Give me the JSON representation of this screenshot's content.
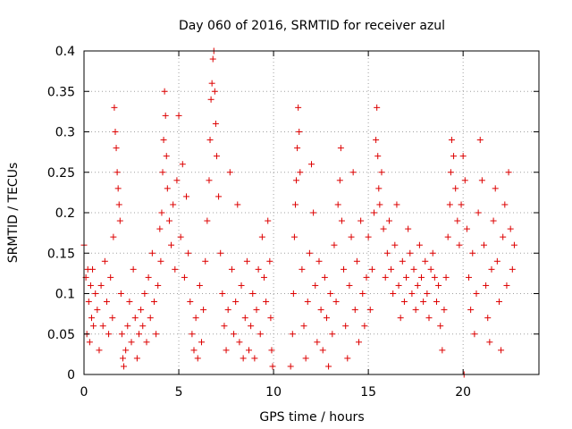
{
  "chart_data": {
    "type": "scatter",
    "title": "Day 060 of 2016, SRMTID for receiver azul",
    "xlabel": "GPS time / hours",
    "ylabel": "SRMTID / TECUs",
    "xlim": [
      0,
      24
    ],
    "ylim": [
      0,
      0.4
    ],
    "grid": true,
    "marker": "plus",
    "colors": {
      "series": "#dd0000",
      "grid": "#a0a0a0",
      "axis": "#000000"
    },
    "x_ticks": [
      {
        "value": 0,
        "label": "0"
      },
      {
        "value": 5,
        "label": "5"
      },
      {
        "value": 10,
        "label": "10"
      },
      {
        "value": 15,
        "label": "15"
      },
      {
        "value": 20,
        "label": "20"
      }
    ],
    "y_ticks": [
      {
        "value": 0,
        "label": "0"
      },
      {
        "value": 0.05,
        "label": "0.05"
      },
      {
        "value": 0.1,
        "label": "0.1"
      },
      {
        "value": 0.15,
        "label": "0.15"
      },
      {
        "value": 0.2,
        "label": "0.2"
      },
      {
        "value": 0.25,
        "label": "0.25"
      },
      {
        "value": 0.3,
        "label": "0.3"
      },
      {
        "value": 0.35,
        "label": "0.35"
      },
      {
        "value": 0.4,
        "label": "0.4"
      }
    ],
    "series": [
      {
        "name": "SRMTID",
        "points": [
          [
            0.0,
            0.16
          ],
          [
            0.1,
            0.12
          ],
          [
            0.15,
            0.05
          ],
          [
            0.2,
            0.13
          ],
          [
            0.25,
            0.09
          ],
          [
            0.3,
            0.04
          ],
          [
            0.35,
            0.11
          ],
          [
            0.4,
            0.07
          ],
          [
            0.45,
            0.13
          ],
          [
            0.5,
            0.06
          ],
          [
            0.6,
            0.1
          ],
          [
            0.7,
            0.08
          ],
          [
            0.8,
            0.03
          ],
          [
            0.9,
            0.11
          ],
          [
            1.0,
            0.06
          ],
          [
            1.1,
            0.14
          ],
          [
            1.2,
            0.09
          ],
          [
            1.3,
            0.05
          ],
          [
            1.4,
            0.12
          ],
          [
            1.5,
            0.07
          ],
          [
            1.55,
            0.17
          ],
          [
            1.6,
            0.33
          ],
          [
            1.65,
            0.3
          ],
          [
            1.7,
            0.28
          ],
          [
            1.75,
            0.25
          ],
          [
            1.8,
            0.23
          ],
          [
            1.85,
            0.21
          ],
          [
            1.9,
            0.19
          ],
          [
            1.95,
            0.1
          ],
          [
            2.0,
            0.05
          ],
          [
            2.05,
            0.02
          ],
          [
            2.1,
            0.01
          ],
          [
            2.2,
            0.03
          ],
          [
            2.3,
            0.06
          ],
          [
            2.4,
            0.09
          ],
          [
            2.5,
            0.04
          ],
          [
            2.6,
            0.13
          ],
          [
            2.7,
            0.07
          ],
          [
            2.8,
            0.02
          ],
          [
            2.9,
            0.05
          ],
          [
            3.0,
            0.08
          ],
          [
            3.1,
            0.06
          ],
          [
            3.2,
            0.1
          ],
          [
            3.3,
            0.04
          ],
          [
            3.4,
            0.12
          ],
          [
            3.5,
            0.07
          ],
          [
            3.6,
            0.15
          ],
          [
            3.7,
            0.09
          ],
          [
            3.8,
            0.05
          ],
          [
            3.9,
            0.11
          ],
          [
            4.0,
            0.18
          ],
          [
            4.05,
            0.14
          ],
          [
            4.1,
            0.2
          ],
          [
            4.15,
            0.25
          ],
          [
            4.2,
            0.29
          ],
          [
            4.25,
            0.35
          ],
          [
            4.3,
            0.32
          ],
          [
            4.35,
            0.27
          ],
          [
            4.4,
            0.23
          ],
          [
            4.5,
            0.19
          ],
          [
            4.6,
            0.16
          ],
          [
            4.7,
            0.21
          ],
          [
            4.8,
            0.13
          ],
          [
            4.9,
            0.24
          ],
          [
            5.0,
            0.32
          ],
          [
            5.1,
            0.17
          ],
          [
            5.2,
            0.26
          ],
          [
            5.3,
            0.12
          ],
          [
            5.4,
            0.22
          ],
          [
            5.5,
            0.15
          ],
          [
            5.6,
            0.09
          ],
          [
            5.7,
            0.05
          ],
          [
            5.8,
            0.03
          ],
          [
            5.9,
            0.07
          ],
          [
            6.0,
            0.02
          ],
          [
            6.1,
            0.11
          ],
          [
            6.2,
            0.04
          ],
          [
            6.3,
            0.08
          ],
          [
            6.4,
            0.14
          ],
          [
            6.5,
            0.19
          ],
          [
            6.6,
            0.24
          ],
          [
            6.65,
            0.29
          ],
          [
            6.7,
            0.34
          ],
          [
            6.75,
            0.36
          ],
          [
            6.8,
            0.39
          ],
          [
            6.85,
            0.4
          ],
          [
            6.9,
            0.35
          ],
          [
            6.95,
            0.31
          ],
          [
            7.0,
            0.27
          ],
          [
            7.1,
            0.22
          ],
          [
            7.2,
            0.15
          ],
          [
            7.3,
            0.1
          ],
          [
            7.4,
            0.06
          ],
          [
            7.5,
            0.03
          ],
          [
            7.6,
            0.08
          ],
          [
            7.7,
            0.25
          ],
          [
            7.8,
            0.13
          ],
          [
            7.9,
            0.05
          ],
          [
            8.0,
            0.09
          ],
          [
            8.1,
            0.21
          ],
          [
            8.2,
            0.04
          ],
          [
            8.3,
            0.11
          ],
          [
            8.4,
            0.02
          ],
          [
            8.5,
            0.07
          ],
          [
            8.6,
            0.14
          ],
          [
            8.7,
            0.03
          ],
          [
            8.8,
            0.06
          ],
          [
            8.9,
            0.1
          ],
          [
            9.0,
            0.02
          ],
          [
            9.1,
            0.08
          ],
          [
            9.2,
            0.13
          ],
          [
            9.3,
            0.05
          ],
          [
            9.4,
            0.17
          ],
          [
            9.5,
            0.12
          ],
          [
            9.6,
            0.09
          ],
          [
            9.7,
            0.19
          ],
          [
            9.8,
            0.14
          ],
          [
            9.85,
            0.07
          ],
          [
            9.9,
            0.03
          ],
          [
            9.95,
            0.01
          ],
          [
            10.9,
            0.01
          ],
          [
            11.0,
            0.05
          ],
          [
            11.05,
            0.1
          ],
          [
            11.1,
            0.17
          ],
          [
            11.15,
            0.21
          ],
          [
            11.2,
            0.24
          ],
          [
            11.25,
            0.28
          ],
          [
            11.3,
            0.33
          ],
          [
            11.35,
            0.3
          ],
          [
            11.4,
            0.25
          ],
          [
            11.5,
            0.13
          ],
          [
            11.6,
            0.06
          ],
          [
            11.7,
            0.02
          ],
          [
            11.8,
            0.09
          ],
          [
            11.9,
            0.15
          ],
          [
            12.0,
            0.26
          ],
          [
            12.1,
            0.2
          ],
          [
            12.2,
            0.11
          ],
          [
            12.3,
            0.04
          ],
          [
            12.4,
            0.14
          ],
          [
            12.5,
            0.08
          ],
          [
            12.6,
            0.03
          ],
          [
            12.7,
            0.12
          ],
          [
            12.8,
            0.07
          ],
          [
            12.9,
            0.01
          ],
          [
            13.0,
            0.1
          ],
          [
            13.1,
            0.05
          ],
          [
            13.2,
            0.16
          ],
          [
            13.3,
            0.09
          ],
          [
            13.4,
            0.21
          ],
          [
            13.5,
            0.24
          ],
          [
            13.55,
            0.28
          ],
          [
            13.6,
            0.19
          ],
          [
            13.7,
            0.13
          ],
          [
            13.8,
            0.06
          ],
          [
            13.9,
            0.02
          ],
          [
            14.0,
            0.11
          ],
          [
            14.1,
            0.17
          ],
          [
            14.2,
            0.25
          ],
          [
            14.3,
            0.08
          ],
          [
            14.4,
            0.14
          ],
          [
            14.5,
            0.04
          ],
          [
            14.6,
            0.19
          ],
          [
            14.7,
            0.1
          ],
          [
            14.8,
            0.06
          ],
          [
            14.9,
            0.12
          ],
          [
            15.0,
            0.17
          ],
          [
            15.1,
            0.08
          ],
          [
            15.2,
            0.13
          ],
          [
            15.3,
            0.2
          ],
          [
            15.4,
            0.29
          ],
          [
            15.45,
            0.33
          ],
          [
            15.5,
            0.27
          ],
          [
            15.55,
            0.23
          ],
          [
            15.6,
            0.21
          ],
          [
            15.7,
            0.25
          ],
          [
            15.8,
            0.18
          ],
          [
            15.9,
            0.12
          ],
          [
            16.0,
            0.15
          ],
          [
            16.1,
            0.19
          ],
          [
            16.2,
            0.13
          ],
          [
            16.3,
            0.1
          ],
          [
            16.4,
            0.16
          ],
          [
            16.5,
            0.21
          ],
          [
            16.6,
            0.11
          ],
          [
            16.7,
            0.07
          ],
          [
            16.8,
            0.14
          ],
          [
            16.9,
            0.09
          ],
          [
            17.0,
            0.12
          ],
          [
            17.1,
            0.18
          ],
          [
            17.2,
            0.15
          ],
          [
            17.3,
            0.1
          ],
          [
            17.4,
            0.13
          ],
          [
            17.5,
            0.08
          ],
          [
            17.6,
            0.11
          ],
          [
            17.7,
            0.16
          ],
          [
            17.8,
            0.12
          ],
          [
            17.9,
            0.09
          ],
          [
            18.0,
            0.14
          ],
          [
            18.1,
            0.1
          ],
          [
            18.2,
            0.07
          ],
          [
            18.3,
            0.13
          ],
          [
            18.4,
            0.15
          ],
          [
            18.5,
            0.12
          ],
          [
            18.6,
            0.09
          ],
          [
            18.7,
            0.11
          ],
          [
            18.8,
            0.06
          ],
          [
            18.9,
            0.03
          ],
          [
            19.0,
            0.08
          ],
          [
            19.1,
            0.12
          ],
          [
            19.2,
            0.17
          ],
          [
            19.3,
            0.21
          ],
          [
            19.35,
            0.25
          ],
          [
            19.4,
            0.29
          ],
          [
            19.5,
            0.27
          ],
          [
            19.6,
            0.23
          ],
          [
            19.7,
            0.19
          ],
          [
            19.8,
            0.16
          ],
          [
            19.9,
            0.21
          ],
          [
            20.0,
            0.27
          ],
          [
            20.05,
            0.0
          ],
          [
            20.1,
            0.24
          ],
          [
            20.2,
            0.18
          ],
          [
            20.3,
            0.12
          ],
          [
            20.4,
            0.08
          ],
          [
            20.5,
            0.15
          ],
          [
            20.6,
            0.05
          ],
          [
            20.7,
            0.1
          ],
          [
            20.8,
            0.2
          ],
          [
            20.9,
            0.29
          ],
          [
            21.0,
            0.24
          ],
          [
            21.1,
            0.16
          ],
          [
            21.2,
            0.11
          ],
          [
            21.3,
            0.07
          ],
          [
            21.4,
            0.04
          ],
          [
            21.5,
            0.13
          ],
          [
            21.6,
            0.19
          ],
          [
            21.7,
            0.23
          ],
          [
            21.8,
            0.14
          ],
          [
            21.9,
            0.09
          ],
          [
            22.0,
            0.03
          ],
          [
            22.1,
            0.17
          ],
          [
            22.2,
            0.21
          ],
          [
            22.3,
            0.11
          ],
          [
            22.4,
            0.25
          ],
          [
            22.5,
            0.18
          ],
          [
            22.6,
            0.13
          ],
          [
            22.7,
            0.16
          ]
        ]
      }
    ]
  }
}
